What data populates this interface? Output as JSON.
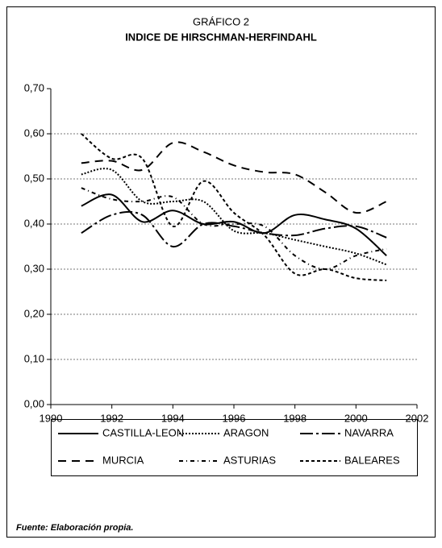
{
  "chart_data": {
    "type": "line",
    "subtitle": "GRÁFICO 2",
    "title": "INDICE DE HIRSCHMAN-HERFINDAHL",
    "x": [
      1991,
      1992,
      1993,
      1994,
      1995,
      1996,
      1997,
      1998,
      1999,
      2000,
      2001
    ],
    "series": [
      {
        "name": "CASTILLA-LEON",
        "color": "#000",
        "dash": "none",
        "values": [
          0.44,
          0.465,
          0.405,
          0.43,
          0.4,
          0.405,
          0.38,
          0.42,
          0.41,
          0.39,
          0.33
        ]
      },
      {
        "name": "ARAGON",
        "color": "#000",
        "dash": "2,2",
        "values": [
          0.51,
          0.52,
          0.45,
          0.45,
          0.45,
          0.385,
          0.38,
          0.365,
          0.35,
          0.335,
          0.31
        ]
      },
      {
        "name": "NAVARRA",
        "color": "#000",
        "dash": "16,4,3,4",
        "values": [
          0.38,
          0.42,
          0.42,
          0.35,
          0.4,
          0.395,
          0.38,
          0.375,
          0.39,
          0.395,
          0.37
        ]
      },
      {
        "name": "MURCIA",
        "color": "#000",
        "dash": "10,7",
        "values": [
          0.535,
          0.54,
          0.52,
          0.58,
          0.56,
          0.53,
          0.515,
          0.51,
          0.47,
          0.425,
          0.45
        ]
      },
      {
        "name": "ASTURIAS",
        "color": "#000",
        "dash": "5,4,1,4",
        "values": [
          0.48,
          0.455,
          0.45,
          0.46,
          0.4,
          0.4,
          0.395,
          0.33,
          0.3,
          0.33,
          0.345
        ]
      },
      {
        "name": "BALEARES",
        "color": "#000",
        "dash": "4,3",
        "values": [
          0.6,
          0.545,
          0.545,
          0.395,
          0.495,
          0.425,
          0.375,
          0.29,
          0.3,
          0.28,
          0.275
        ]
      }
    ],
    "xlim": [
      1990,
      2002
    ],
    "xticks": [
      1990,
      1992,
      1994,
      1996,
      1998,
      2000,
      2002
    ],
    "ylim": [
      0,
      0.7
    ],
    "yticks": [
      {
        "value": 0,
        "label": "0,00"
      },
      {
        "value": 0.1,
        "label": "0,10"
      },
      {
        "value": 0.2,
        "label": "0,20"
      },
      {
        "value": 0.3,
        "label": "0,30"
      },
      {
        "value": 0.4,
        "label": "0,40"
      },
      {
        "value": 0.5,
        "label": "0,50"
      },
      {
        "value": 0.6,
        "label": "0,60"
      },
      {
        "value": 0.7,
        "label": "0,70"
      }
    ],
    "grid": true,
    "source": "Fuente: Elaboración propia."
  }
}
